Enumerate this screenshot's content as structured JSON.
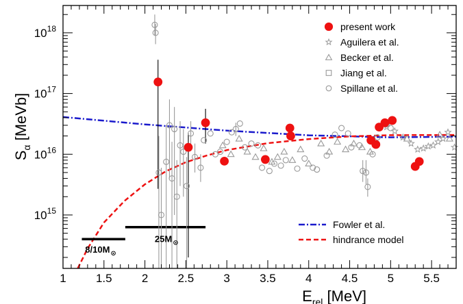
{
  "chart_data": {
    "type": "scatter",
    "xlabel": "E",
    "xlabel_sub": "rel",
    "xlabel_unit": " [MeV]",
    "ylabel": "S",
    "ylabel_sub": "α",
    "ylabel_unit": " [MeVb]",
    "xlim": [
      1.0,
      5.8
    ],
    "ylim_log10": [
      14.12,
      18.45
    ],
    "y_log_scale": true,
    "grid": false,
    "legend_placement": "top-right and bottom-right",
    "x_ticks": [
      {
        "value": 1.0,
        "label": "1"
      },
      {
        "value": 1.5,
        "label": "1.5"
      },
      {
        "value": 2.0,
        "label": "2"
      },
      {
        "value": 2.5,
        "label": "2.5"
      },
      {
        "value": 3.0,
        "label": "3"
      },
      {
        "value": 3.5,
        "label": "3.5"
      },
      {
        "value": 4.0,
        "label": "4"
      },
      {
        "value": 4.5,
        "label": "4.5"
      },
      {
        "value": 5.0,
        "label": "5"
      },
      {
        "value": 5.5,
        "label": "5.5"
      }
    ],
    "y_ticks": [
      {
        "value": 1000000000000000.0,
        "base": "10",
        "exp": "15"
      },
      {
        "value": 1e+16,
        "base": "10",
        "exp": "16"
      },
      {
        "value": 1e+17,
        "base": "10",
        "exp": "17"
      },
      {
        "value": 1e+18,
        "base": "10",
        "exp": "18"
      }
    ],
    "legend_top": [
      {
        "label": "present work",
        "marker": "filled-circle",
        "color": "#ee1111"
      },
      {
        "label": "Aguilera et al.",
        "marker": "star",
        "color": "#999999"
      },
      {
        "label": "Becker et al.",
        "marker": "triangle",
        "color": "#999999"
      },
      {
        "label": "Jiang et al.",
        "marker": "square",
        "color": "#999999"
      },
      {
        "label": "Spillane et al.",
        "marker": "circle",
        "color": "#999999"
      }
    ],
    "legend_bottom": [
      {
        "label": "Fowler et al.",
        "style": "dash-dot",
        "color": "#1a1acc"
      },
      {
        "label": "hindrance model",
        "style": "dashed",
        "color": "#ee1111"
      }
    ],
    "series": [
      {
        "name": "present work",
        "marker": "filled-circle",
        "color": "#ee1111",
        "points": [
          {
            "x": 2.16,
            "y": 1.55e+17,
            "ylo": 2700000000000000.0,
            "yhi": 3.6e+17
          },
          {
            "x": 2.53,
            "y": 1.3e+16,
            "ylo": 200000000000000.0,
            "yhi": 2.2e+16
          },
          {
            "x": 2.74,
            "y": 3.3e+16,
            "ylo": 1.5e+16,
            "yhi": 5.6e+16
          },
          {
            "x": 2.97,
            "y": 7700000000000000.0
          },
          {
            "x": 3.47,
            "y": 8200000000000000.0
          },
          {
            "x": 3.77,
            "y": 2.7e+16
          },
          {
            "x": 3.78,
            "y": 2e+16
          },
          {
            "x": 4.76,
            "y": 1.7e+16
          },
          {
            "x": 4.82,
            "y": 1.45e+16
          },
          {
            "x": 4.86,
            "y": 2.8e+16
          },
          {
            "x": 4.93,
            "y": 3.3e+16
          },
          {
            "x": 5.02,
            "y": 3.6e+16
          },
          {
            "x": 5.3,
            "y": 6300000000000000.0
          },
          {
            "x": 5.35,
            "y": 7600000000000000.0
          }
        ]
      },
      {
        "name": "Spillane et al.",
        "marker": "circle",
        "color": "#999999",
        "points": [
          {
            "x": 2.12,
            "y": 1.35e+18,
            "ylo": 9e+17,
            "yhi": 2e+18
          },
          {
            "x": 2.13,
            "y": 1e+18,
            "ylo": 6.5e+17,
            "yhi": 1.4e+18
          },
          {
            "x": 2.17,
            "y": 5000000000000000.0,
            "ylo": 100000000000000.0,
            "yhi": 2e+16
          },
          {
            "x": 2.2,
            "y": 1000000000000000.0,
            "ylo": 100000000000000.0,
            "yhi": 6000000000000000.0
          },
          {
            "x": 2.26,
            "y": 7500000000000000.0,
            "ylo": 100000000000000.0,
            "yhi": 3e+16
          },
          {
            "x": 2.3,
            "y": 3e+16,
            "ylo": 4000000000000000.0,
            "yhi": 8e+16
          },
          {
            "x": 2.33,
            "y": 4000000000000000.0,
            "ylo": 100000000000000.0,
            "yhi": 1.6e+16
          },
          {
            "x": 2.36,
            "y": 2.6e+16,
            "ylo": 1000000000000000.0,
            "yhi": 6e+16
          },
          {
            "x": 2.39,
            "y": 2000000000000000.0,
            "ylo": 100000000000000.0,
            "yhi": 8000000000000000.0
          },
          {
            "x": 2.43,
            "y": 1.4e+16,
            "ylo": 3000000000000000.0,
            "yhi": 3.5e+16
          },
          {
            "x": 2.47,
            "y": 1.1e+16,
            "ylo": 2000000000000000.0,
            "yhi": 2.6e+16
          },
          {
            "x": 2.51,
            "y": 3000000000000000.0,
            "ylo": 100000000000000.0,
            "yhi": 9000000000000000.0
          },
          {
            "x": 2.56,
            "y": 2.2e+16,
            "ylo": 1.2e+16,
            "yhi": 3.5e+16
          },
          {
            "x": 2.61,
            "y": 9000000000000000.0,
            "ylo": 5000000000000000.0,
            "yhi": 1.5e+16
          },
          {
            "x": 2.68,
            "y": 6000000000000000.0,
            "ylo": 3500000000000000.0,
            "yhi": 1e+16
          },
          {
            "x": 2.72,
            "y": 1.7e+16
          },
          {
            "x": 2.8,
            "y": 2.2e+16
          },
          {
            "x": 2.86,
            "y": 1e+16
          },
          {
            "x": 2.92,
            "y": 1.1e+16
          },
          {
            "x": 3.0,
            "y": 1.6e+16
          },
          {
            "x": 3.06,
            "y": 2.3e+16
          },
          {
            "x": 3.11,
            "y": 2.6e+16,
            "ylo": 2e+16,
            "yhi": 3.3e+16
          },
          {
            "x": 3.16,
            "y": 3.2e+16
          },
          {
            "x": 3.22,
            "y": 1.3e+16
          },
          {
            "x": 3.3,
            "y": 1.5e+16
          },
          {
            "x": 3.38,
            "y": 1.4e+16
          },
          {
            "x": 3.43,
            "y": 6000000000000000.0
          },
          {
            "x": 3.52,
            "y": 5300000000000000.0
          },
          {
            "x": 3.58,
            "y": 7000000000000000.0
          },
          {
            "x": 3.66,
            "y": 6500000000000000.0
          },
          {
            "x": 3.72,
            "y": 8000000000000000.0
          },
          {
            "x": 3.86,
            "y": 5800000000000000.0
          },
          {
            "x": 3.95,
            "y": 8500000000000000.0
          },
          {
            "x": 4.05,
            "y": 6000000000000000.0
          },
          {
            "x": 4.1,
            "y": 5600000000000000.0
          },
          {
            "x": 4.22,
            "y": 9500000000000000.0
          },
          {
            "x": 4.32,
            "y": 2.1e+16
          },
          {
            "x": 4.4,
            "y": 2.7e+16
          },
          {
            "x": 4.48,
            "y": 2.2e+16
          },
          {
            "x": 4.52,
            "y": 1.3e+16
          },
          {
            "x": 4.62,
            "y": 1.4e+16
          },
          {
            "x": 4.66,
            "y": 5300000000000000.0,
            "ylo": 3500000000000000.0,
            "yhi": 8000000000000000.0
          },
          {
            "x": 4.7,
            "y": 5000000000000000.0,
            "ylo": 3200000000000000.0,
            "yhi": 8000000000000000.0
          },
          {
            "x": 4.72,
            "y": 2900000000000000.0,
            "ylo": 2000000000000000.0,
            "yhi": 4000000000000000.0
          },
          {
            "x": 4.78,
            "y": 1e+16
          },
          {
            "x": 4.84,
            "y": 1.9e+16
          },
          {
            "x": 4.95,
            "y": 3.1e+16
          },
          {
            "x": 5.0,
            "y": 2.7e+16
          }
        ]
      },
      {
        "name": "Becker et al.",
        "marker": "triangle",
        "color": "#999999",
        "points": [
          {
            "x": 2.95,
            "y": 1.4e+16
          },
          {
            "x": 3.05,
            "y": 1e+16
          },
          {
            "x": 3.15,
            "y": 1.8e+16
          },
          {
            "x": 3.25,
            "y": 1.1e+16
          },
          {
            "x": 3.35,
            "y": 9000000000000000.0
          },
          {
            "x": 3.45,
            "y": 1.25e+16
          },
          {
            "x": 3.55,
            "y": 7500000000000000.0
          },
          {
            "x": 3.62,
            "y": 9000000000000000.0
          },
          {
            "x": 3.7,
            "y": 1.1e+16
          },
          {
            "x": 3.8,
            "y": 8000000000000000.0
          },
          {
            "x": 3.9,
            "y": 1.2e+16
          },
          {
            "x": 4.0,
            "y": 7000000000000000.0
          },
          {
            "x": 4.15,
            "y": 1.5e+16
          },
          {
            "x": 4.25,
            "y": 1.1e+16
          },
          {
            "x": 4.35,
            "y": 1.6e+16
          },
          {
            "x": 4.45,
            "y": 1.2e+16
          },
          {
            "x": 4.55,
            "y": 1.5e+16
          },
          {
            "x": 4.65,
            "y": 1.3e+16
          },
          {
            "x": 4.75,
            "y": 1.1e+16
          },
          {
            "x": 5.2,
            "y": 1.8e+16
          },
          {
            "x": 5.6,
            "y": 2.1e+16
          },
          {
            "x": 5.72,
            "y": 1.8e+16
          }
        ]
      },
      {
        "name": "Aguilera et al.",
        "marker": "star",
        "color": "#999999",
        "points": [
          {
            "x": 4.95,
            "y": 2.8e+16
          },
          {
            "x": 5.05,
            "y": 2.4e+16
          },
          {
            "x": 5.15,
            "y": 1.9e+16
          },
          {
            "x": 5.25,
            "y": 1.5e+16
          },
          {
            "x": 5.33,
            "y": 1.2e+16
          },
          {
            "x": 5.4,
            "y": 1.25e+16
          },
          {
            "x": 5.46,
            "y": 1.35e+16
          },
          {
            "x": 5.52,
            "y": 1.4e+16
          },
          {
            "x": 5.58,
            "y": 1.6e+16
          },
          {
            "x": 5.64,
            "y": 1.8e+16
          },
          {
            "x": 5.7,
            "y": 2.3e+16
          },
          {
            "x": 5.78,
            "y": 1.3e+16
          }
        ]
      },
      {
        "name": "Fowler et al.",
        "style": "dash-dot",
        "color": "#1a1acc",
        "curve": [
          {
            "x": 1.0,
            "y": 4.1e+16
          },
          {
            "x": 2.0,
            "y": 3.1e+16
          },
          {
            "x": 3.0,
            "y": 2.45e+16
          },
          {
            "x": 4.0,
            "y": 2.05e+16
          },
          {
            "x": 5.0,
            "y": 1.9e+16
          },
          {
            "x": 5.8,
            "y": 1.95e+16
          }
        ]
      },
      {
        "name": "hindrance model",
        "style": "dashed",
        "color": "#ee1111",
        "curve": [
          {
            "x": 1.18,
            "y": 130000000000000.0
          },
          {
            "x": 1.3,
            "y": 280000000000000.0
          },
          {
            "x": 1.5,
            "y": 750000000000000.0
          },
          {
            "x": 1.75,
            "y": 1700000000000000.0
          },
          {
            "x": 2.0,
            "y": 3200000000000000.0
          },
          {
            "x": 2.25,
            "y": 5200000000000000.0
          },
          {
            "x": 2.5,
            "y": 7400000000000000.0
          },
          {
            "x": 2.75,
            "y": 9500000000000000.0
          },
          {
            "x": 3.0,
            "y": 1.17e+16
          },
          {
            "x": 3.5,
            "y": 1.52e+16
          },
          {
            "x": 4.0,
            "y": 1.78e+16
          },
          {
            "x": 4.5,
            "y": 1.97e+16
          },
          {
            "x": 5.0,
            "y": 2.06e+16
          },
          {
            "x": 5.8,
            "y": 2.08e+16
          }
        ]
      }
    ],
    "ranges": [
      {
        "label": "8/10M",
        "x_start": 1.23,
        "x_end": 1.76,
        "y": 400000000000000.0
      },
      {
        "label": "25M",
        "x_start": 1.76,
        "x_end": 2.74,
        "y": 630000000000000.0
      }
    ],
    "annotations": [
      {
        "label": "8/10M",
        "symbol": "⊙",
        "x": 1.27,
        "y": 240000000000000.0
      },
      {
        "label": "25M",
        "symbol": "⊙",
        "x": 2.12,
        "y": 360000000000000.0
      }
    ]
  }
}
